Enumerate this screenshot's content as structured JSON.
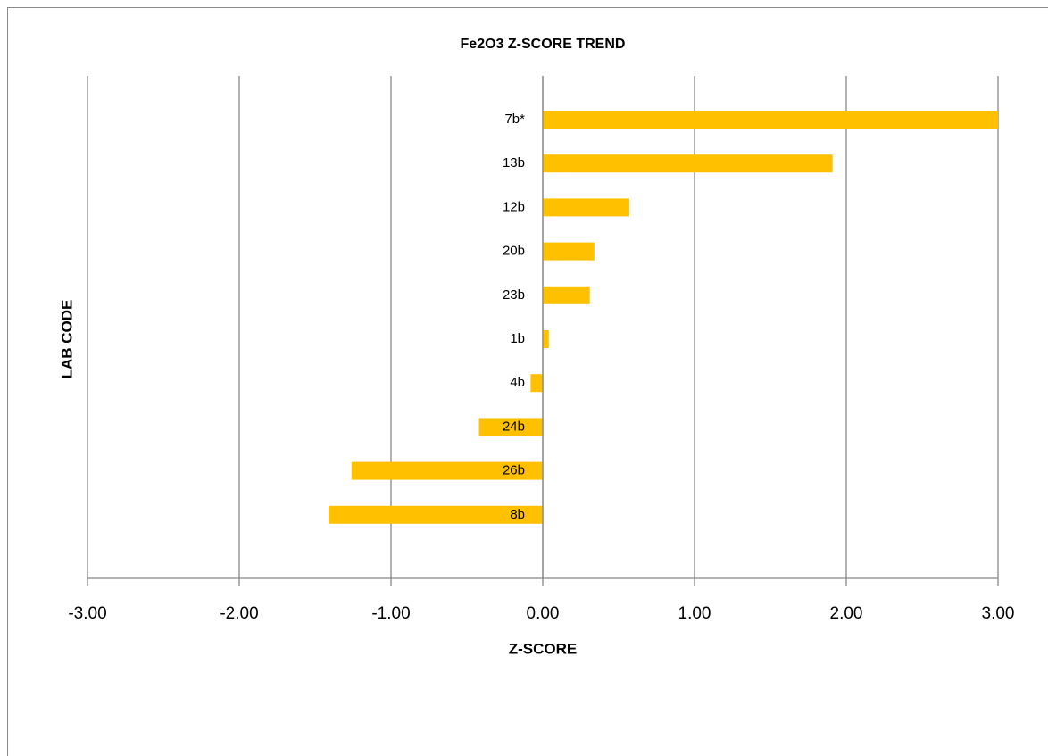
{
  "chart_data": {
    "type": "bar",
    "orientation": "horizontal",
    "title": "Fe2O3 Z-SCORE TREND",
    "xlabel": "Z-SCORE",
    "ylabel": "LAB CODE",
    "categories": [
      "7b*",
      "13b",
      "12b",
      "20b",
      "23b",
      "1b",
      "4b",
      "24b",
      "26b",
      "8b"
    ],
    "values": [
      3.0,
      1.91,
      0.57,
      0.34,
      0.31,
      0.04,
      -0.08,
      -0.42,
      -1.26,
      -1.41
    ],
    "color": "#ffc000",
    "xlim": [
      -3,
      3
    ],
    "xticks": [
      {
        "value": -3,
        "label": "-3.00"
      },
      {
        "value": -2,
        "label": "-2.00"
      },
      {
        "value": -1,
        "label": "-1.00"
      },
      {
        "value": 0,
        "label": "0.00"
      },
      {
        "value": 1,
        "label": "1.00"
      },
      {
        "value": 2,
        "label": "2.00"
      },
      {
        "value": 3,
        "label": "3.00"
      }
    ],
    "grid": true
  }
}
